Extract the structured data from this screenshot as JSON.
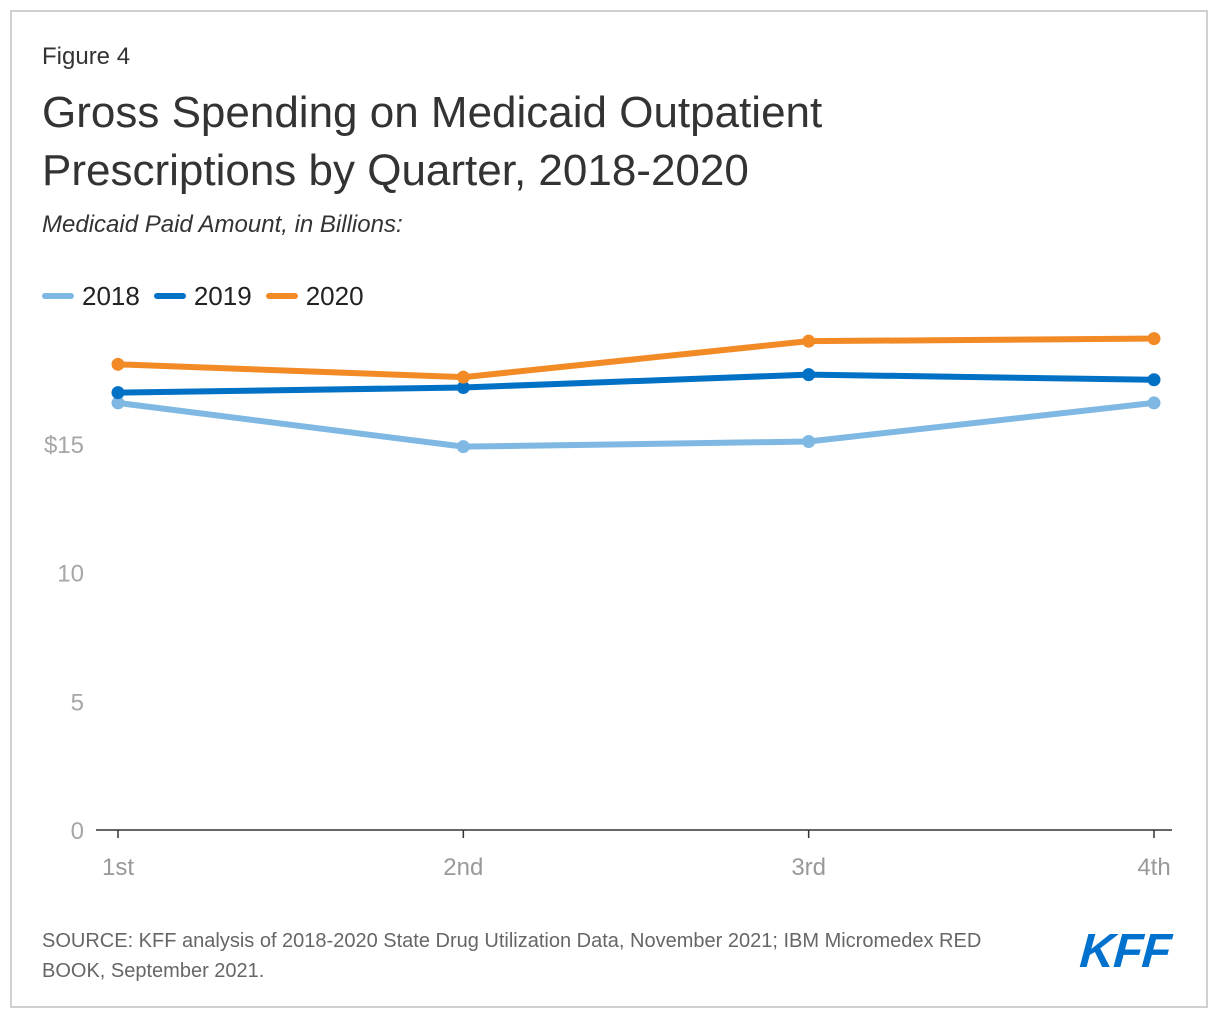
{
  "figure_label": "Figure 4",
  "title": "Gross Spending on Medicaid Outpatient Prescriptions by Quarter, 2018-2020",
  "subtitle": "Medicaid Paid Amount, in Billions:",
  "source": "SOURCE: KFF analysis of 2018-2020 State Drug Utilization Data, November 2021; IBM Micromedex RED BOOK, September 2021.",
  "logo": {
    "text": "KFF",
    "color": "#0072ce"
  },
  "chart_data": {
    "type": "line",
    "title": "Gross Spending on Medicaid Outpatient Prescriptions by Quarter, 2018-2020",
    "xlabel": "",
    "ylabel": "Medicaid Paid Amount, in Billions",
    "categories": [
      "1st",
      "2nd",
      "3rd",
      "4th"
    ],
    "y_ticks": [
      {
        "value": 0,
        "label": "0"
      },
      {
        "value": 5,
        "label": "5"
      },
      {
        "value": 10,
        "label": "10"
      },
      {
        "value": 15,
        "label": "$15"
      }
    ],
    "ylim": [
      0,
      20
    ],
    "grid": false,
    "legend_position": "top-left",
    "series": [
      {
        "name": "2018",
        "color": "#7fb8e2",
        "values": [
          16.6,
          14.9,
          15.1,
          16.6
        ]
      },
      {
        "name": "2019",
        "color": "#0071c5",
        "values": [
          17.0,
          17.2,
          17.7,
          17.5
        ]
      },
      {
        "name": "2020",
        "color": "#f28a25",
        "values": [
          18.1,
          17.6,
          19.0,
          19.1
        ]
      }
    ]
  }
}
